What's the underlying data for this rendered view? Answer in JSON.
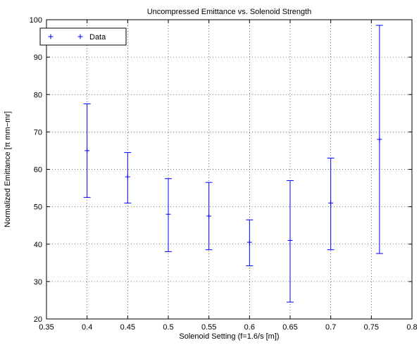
{
  "chart_data": {
    "type": "scatter",
    "title": "Uncompressed Emittance vs. Solenoid Strength",
    "xlabel": "Solenoid Setting (f=1.6/s [m])",
    "ylabel": "Normalized Emittance [π mm−mr]",
    "xlim": [
      0.35,
      0.8
    ],
    "ylim": [
      20,
      100
    ],
    "xticks": [
      0.35,
      0.4,
      0.45,
      0.5,
      0.55,
      0.6,
      0.65,
      0.7,
      0.75,
      0.8
    ],
    "xtick_labels": [
      "0.35",
      "0.4",
      "0.45",
      "0.5",
      "0.55",
      "0.6",
      "0.65",
      "0.7",
      "0.75",
      "0.8"
    ],
    "yticks": [
      20,
      30,
      40,
      50,
      60,
      70,
      80,
      90,
      100
    ],
    "ytick_labels": [
      "20",
      "30",
      "40",
      "50",
      "60",
      "70",
      "80",
      "90",
      "100"
    ],
    "grid": "dotted",
    "legend_position": "top-left",
    "marker": "+",
    "color": "#0000ff",
    "series": [
      {
        "name": "Data",
        "x": [
          0.4,
          0.45,
          0.5,
          0.55,
          0.6,
          0.65,
          0.7,
          0.76
        ],
        "y": [
          65.0,
          58.0,
          48.0,
          47.5,
          40.5,
          41.0,
          51.0,
          68.0
        ],
        "y_lower": [
          52.5,
          51.0,
          38.0,
          38.5,
          34.2,
          24.5,
          38.5,
          37.5
        ],
        "y_upper": [
          77.5,
          64.5,
          57.5,
          56.5,
          46.5,
          57.0,
          63.0,
          98.5
        ]
      }
    ]
  }
}
